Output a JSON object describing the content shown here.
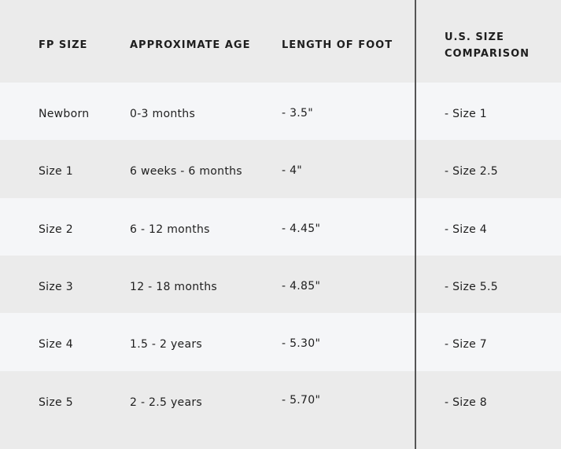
{
  "table": {
    "headers": [
      "FP SIZE",
      "APPROXIMATE AGE",
      "LENGTH OF FOOT",
      "U.S. SIZE",
      "COMPARISON"
    ],
    "rows": [
      [
        "Newborn",
        "0-3 months",
        "- 3.5\"",
        "- Size 1"
      ],
      [
        "Size 1",
        "6 weeks - 6 months",
        "- 4\"",
        "- Size 2.5"
      ],
      [
        "Size 2",
        "6 - 12 months",
        "- 4.45\"",
        "- Size 4"
      ],
      [
        "Size 3",
        "12 - 18 months",
        "- 4.85\"",
        "- Size 5.5"
      ],
      [
        "Size 4",
        "1.5 - 2 years",
        "- 5.30\"",
        "- Size 7"
      ],
      [
        "Size 5",
        "2 - 2.5 years",
        "- 5.70\"",
        "- Size 8"
      ]
    ]
  },
  "colors": {
    "row_light": "#f5f6f8",
    "row_gray": "#ebebeb",
    "divider": "#555555"
  }
}
